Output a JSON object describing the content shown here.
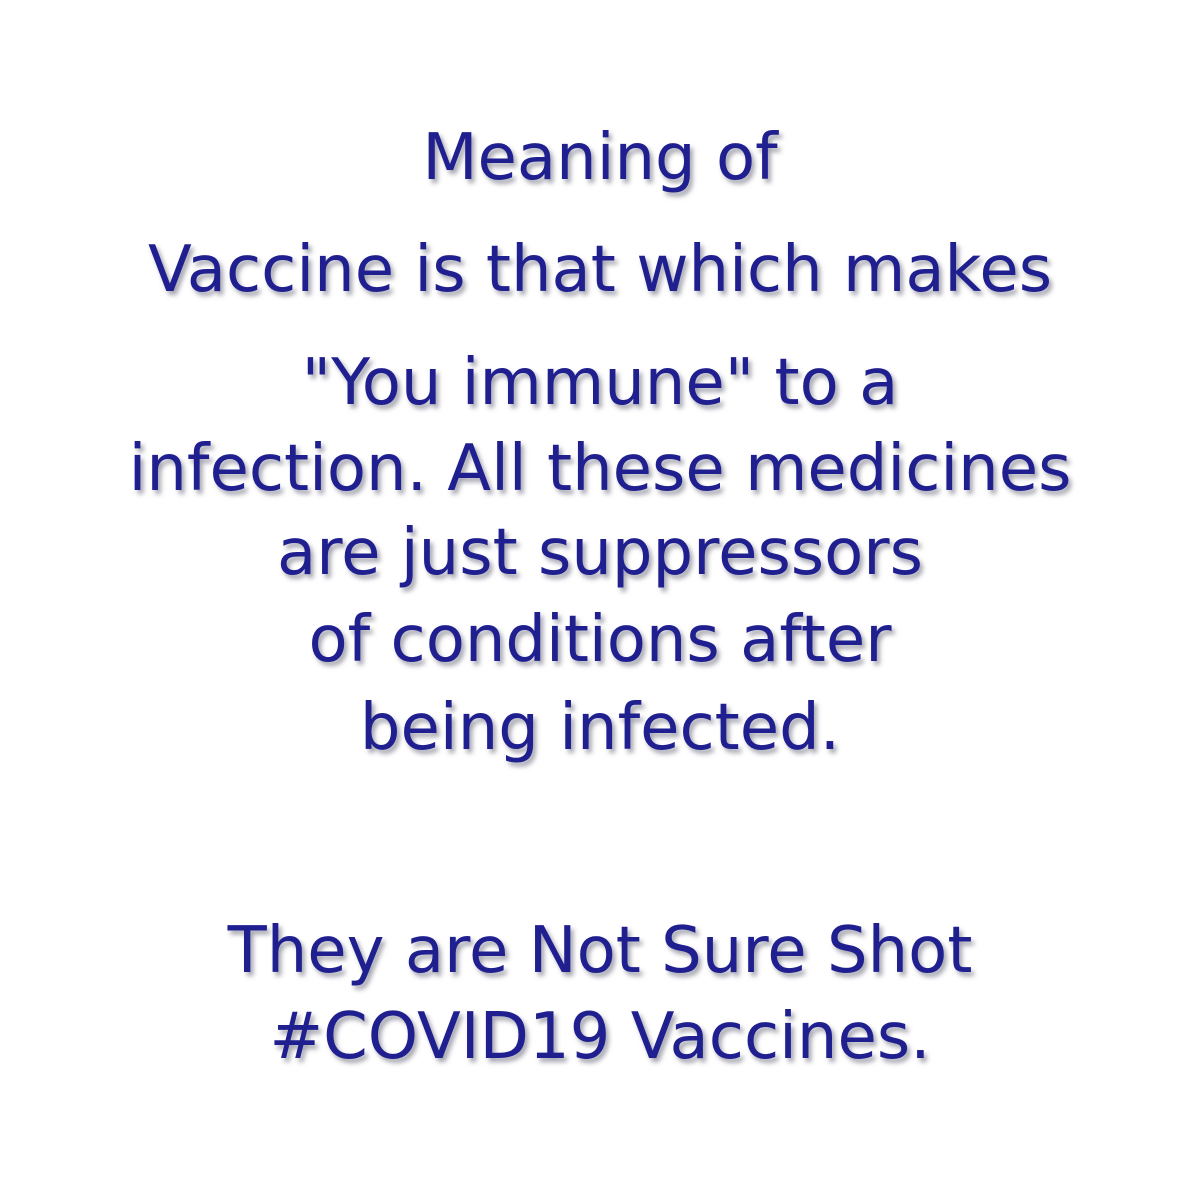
{
  "message": {
    "lines": [
      "Meaning of",
      "Vaccine is that which makes",
      "\"You immune\" to a",
      "infection. All these medicines",
      "are just suppressors",
      "of conditions after",
      "being infected.",
      "They are Not Sure Shot",
      "#COVID19 Vaccines."
    ],
    "text_color": "#1f1f8f",
    "background_color": "#ffffff"
  }
}
